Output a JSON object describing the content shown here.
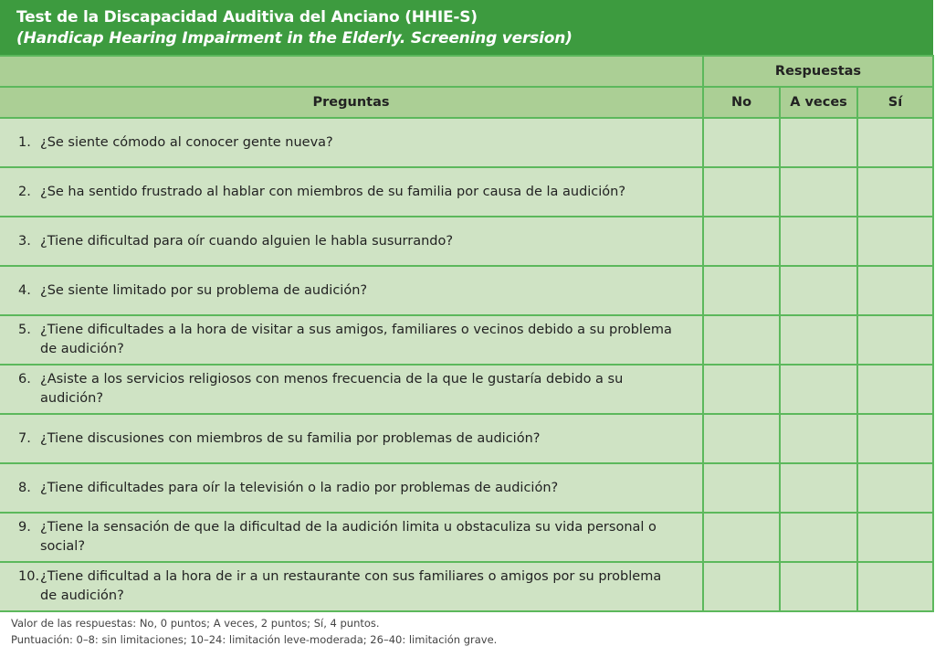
{
  "title": "Test de la Discapacidad Auditiva del Anciano (HHIE-S)",
  "subtitle": "(Handicap Hearing Impairment in the Elderly. Screening version)",
  "table": {
    "group_header": "Respuestas",
    "question_header": "Preguntas",
    "answer_headers": [
      "No",
      "A veces",
      "Sí"
    ],
    "rows": [
      {
        "n": "1.",
        "q": "¿Se siente cómodo al conocer gente nueva?"
      },
      {
        "n": "2.",
        "q": "¿Se ha sentido frustrado al hablar con miembros de su familia por causa de la audición?"
      },
      {
        "n": "3.",
        "q": "¿Tiene dificultad para oír cuando alguien le habla susurrando?"
      },
      {
        "n": "4.",
        "q": "¿Se siente limitado por su problema de audición?"
      },
      {
        "n": "5.",
        "q": "¿Tiene dificultades a la hora de visitar a sus amigos, familiares o vecinos debido a su problema de audición?"
      },
      {
        "n": "6.",
        "q": "¿Asiste a los servicios religiosos con menos frecuencia de la que le gustaría debido a su audición?"
      },
      {
        "n": "7.",
        "q": "¿Tiene discusiones con miembros de su familia por problemas de audición?"
      },
      {
        "n": "8.",
        "q": "¿Tiene dificultades para oír la televisión o la radio por problemas de audición?"
      },
      {
        "n": "9.",
        "q": "¿Tiene la sensación de que la dificultad de la audición limita u obstaculiza su vida personal o social?"
      },
      {
        "n": "10.",
        "q": "¿Tiene dificultad a la hora de ir a un restaurante con sus familiares o amigos por su problema de audición?"
      }
    ]
  },
  "footer": {
    "line1": "Valor de las respuestas: No, 0 puntos; A veces, 2 puntos; Sí, 4 puntos.",
    "line2": "Puntuación: 0–8: sin limitaciones; 10–24: limitación leve-moderada; 26–40: limitación grave."
  },
  "colors": {
    "title_bg": "#3d9b3f",
    "header_bg": "#abcf95",
    "row_bg": "#cfe3c4",
    "border": "#5cb85c"
  }
}
